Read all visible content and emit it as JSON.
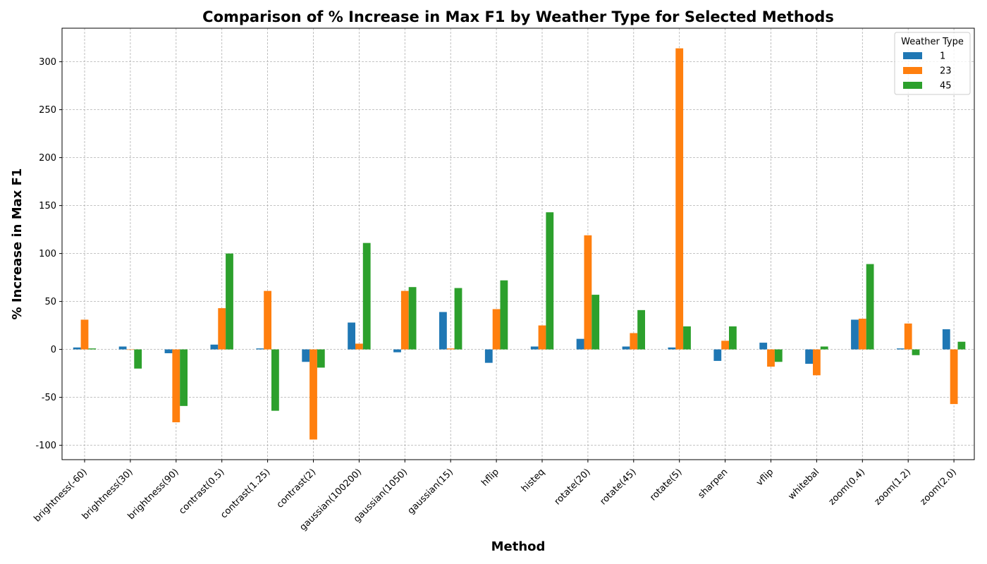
{
  "chart_data": {
    "type": "bar",
    "title": "Comparison of % Increase in Max F1 by Weather Type for Selected Methods",
    "xlabel": "Method",
    "ylabel": "% Increase in Max F1",
    "ylim": [
      -115,
      335
    ],
    "yticks": [
      -100,
      -50,
      0,
      50,
      100,
      150,
      200,
      250,
      300
    ],
    "grid": true,
    "legend_title": "Weather Type",
    "legend_position": "top-right",
    "categories": [
      "brightness(-60)",
      "brightness(30)",
      "brightness(90)",
      "contrast(0.5)",
      "contrast(1.25)",
      "contrast(2)",
      "gaussian(100200)",
      "gaussian(1050)",
      "gaussian(15)",
      "hflip",
      "histeq",
      "rotate(20)",
      "rotate(45)",
      "rotate(5)",
      "sharpen",
      "vflip",
      "whitebal",
      "zoom(0.4)",
      "zoom(1.2)",
      "zoom(2.0)"
    ],
    "series": [
      {
        "name": "1",
        "color": "#1f77b4",
        "values": [
          2,
          3,
          -4,
          5,
          1,
          -13,
          28,
          -3,
          39,
          -14,
          3,
          11,
          3,
          2,
          -12,
          7,
          -15,
          31,
          1,
          21
        ]
      },
      {
        "name": "23",
        "color": "#ff7f0e",
        "values": [
          31,
          0,
          -76,
          43,
          61,
          -94,
          6,
          61,
          1,
          42,
          25,
          119,
          17,
          314,
          9,
          -18,
          -27,
          32,
          27,
          -57
        ]
      },
      {
        "name": "45",
        "color": "#2ca02c",
        "values": [
          1,
          -20,
          -59,
          100,
          -64,
          -19,
          111,
          65,
          64,
          72,
          143,
          57,
          41,
          24,
          24,
          -13,
          3,
          89,
          -6,
          8
        ]
      }
    ]
  }
}
